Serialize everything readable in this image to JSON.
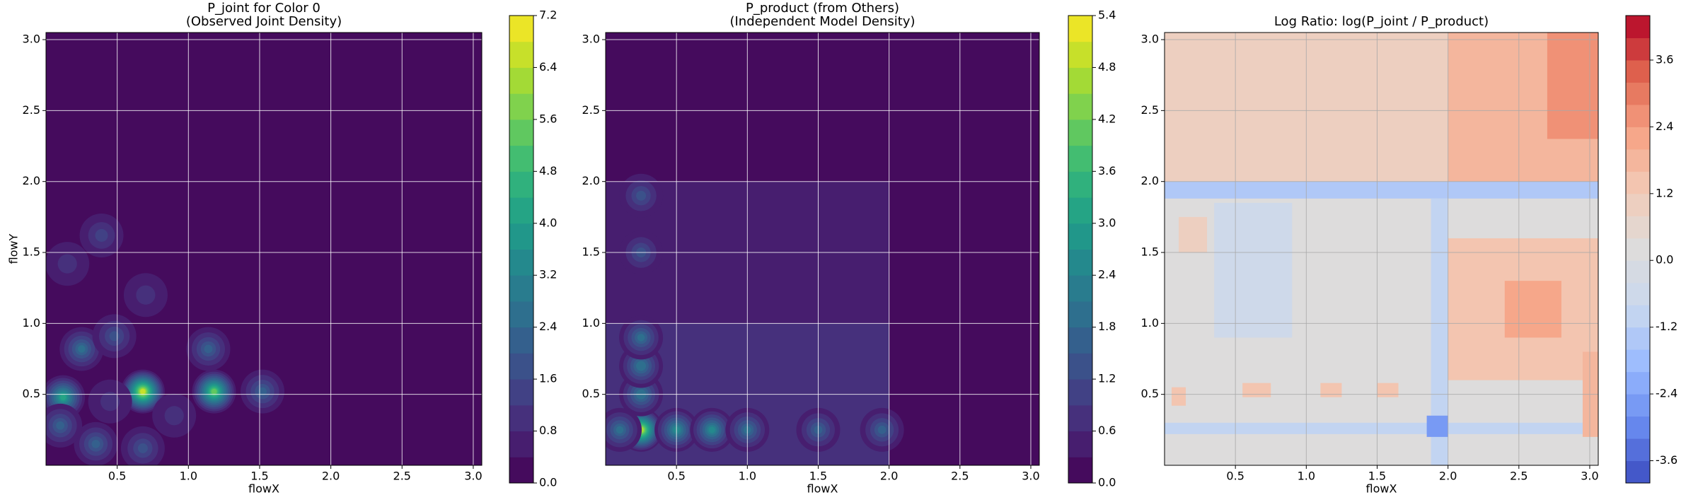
{
  "chart_data": [
    {
      "type": "contour",
      "title": "P_joint for Color 0",
      "subtitle": "(Observed Joint Density)",
      "xlabel": "flowX",
      "ylabel": "flowY",
      "xlim": [
        0.0,
        3.06
      ],
      "ylim": [
        0.0,
        3.05
      ],
      "xticks": [
        0.5,
        {
          "value": 1,
          "label": "1.0"
        },
        1.5,
        {
          "value": 2,
          "label": "2.0"
        },
        2.5,
        {
          "value": 3,
          "label": "3.0"
        }
      ],
      "yticks": [
        0.5,
        {
          "value": 1,
          "label": "1.0"
        },
        1.5,
        {
          "value": 2,
          "label": "2.0"
        },
        2.5,
        {
          "value": 3,
          "label": "3.0"
        }
      ],
      "grid": true,
      "grid_color": "#ffffff",
      "colorbar": {
        "cmap": "viridis",
        "levels": [
          0,
          0.4,
          0.8,
          1.2,
          1.6,
          2.0,
          2.4,
          2.8,
          3.2,
          3.6,
          4.0,
          4.4,
          4.8,
          5.2,
          5.6,
          6.0,
          6.4,
          6.8,
          7.2
        ],
        "ticks": [
          {
            "value": 0,
            "label": "0.0"
          },
          0.8,
          1.6,
          2.4,
          3.2,
          {
            "value": 4,
            "label": "4.0"
          },
          4.8,
          5.6,
          6.4,
          7.2
        ]
      },
      "regions": [
        {
          "x": [
            0.0,
            3.06
          ],
          "y": [
            0.0,
            3.05
          ],
          "value": 0.1
        }
      ],
      "peaks": [
        {
          "x": 0.68,
          "y": 0.52,
          "value": 6.4
        },
        {
          "x": 1.18,
          "y": 0.52,
          "value": 5.2
        },
        {
          "x": 0.12,
          "y": 0.48,
          "value": 4.0
        },
        {
          "x": 0.25,
          "y": 0.82,
          "value": 2.4
        },
        {
          "x": 0.48,
          "y": 0.91,
          "value": 1.6
        },
        {
          "x": 1.14,
          "y": 0.82,
          "value": 2.0
        },
        {
          "x": 1.52,
          "y": 0.52,
          "value": 2.0
        },
        {
          "x": 0.35,
          "y": 0.15,
          "value": 2.0
        },
        {
          "x": 0.1,
          "y": 0.28,
          "value": 2.0
        },
        {
          "x": 0.68,
          "y": 0.12,
          "value": 1.6
        },
        {
          "x": 0.39,
          "y": 1.62,
          "value": 1.2
        },
        {
          "x": 0.15,
          "y": 1.42,
          "value": 0.8
        },
        {
          "x": 0.45,
          "y": 0.45,
          "value": 0.8
        },
        {
          "x": 0.9,
          "y": 0.35,
          "value": 0.8
        },
        {
          "x": 0.7,
          "y": 1.2,
          "value": 0.8
        }
      ]
    },
    {
      "type": "contour",
      "title": "P_product (from Others)",
      "subtitle": "(Independent Model Density)",
      "xlabel": "flowX",
      "xlim": [
        0.0,
        3.06
      ],
      "ylim": [
        0.0,
        3.05
      ],
      "xticks": [
        0.5,
        {
          "value": 1,
          "label": "1.0"
        },
        1.5,
        {
          "value": 2,
          "label": "2.0"
        },
        2.5,
        {
          "value": 3,
          "label": "3.0"
        }
      ],
      "yticks": [
        0.5,
        {
          "value": 1,
          "label": "1.0"
        },
        1.5,
        {
          "value": 2,
          "label": "2.0"
        },
        2.5,
        {
          "value": 3,
          "label": "3.0"
        }
      ],
      "grid": true,
      "grid_color": "#ffffff",
      "colorbar": {
        "cmap": "viridis",
        "levels": [
          0,
          0.3,
          0.6,
          0.9,
          1.2,
          1.5,
          1.8,
          2.1,
          2.4,
          2.7,
          3.0,
          3.3,
          3.6,
          3.9,
          4.2,
          4.5,
          4.8,
          5.1,
          5.4
        ],
        "ticks": [
          {
            "value": 0,
            "label": "0.0"
          },
          0.6,
          1.2,
          1.8,
          2.4,
          {
            "value": 3,
            "label": "3.0"
          },
          3.6,
          4.2,
          4.8,
          5.4
        ]
      },
      "regions": [
        {
          "x": [
            0.0,
            3.06
          ],
          "y": [
            0.0,
            3.05
          ],
          "value": 0.1
        },
        {
          "x": [
            0.0,
            2.0
          ],
          "y": [
            0.0,
            2.0
          ],
          "value": 0.35
        },
        {
          "x": [
            0.0,
            2.0
          ],
          "y": [
            0.0,
            1.0
          ],
          "value": 0.65
        }
      ],
      "peaks": [
        {
          "x": 0.25,
          "y": 0.25,
          "value": 4.6
        },
        {
          "x": 0.25,
          "y": 0.5,
          "value": 2.0
        },
        {
          "x": 0.25,
          "y": 0.7,
          "value": 2.0
        },
        {
          "x": 0.25,
          "y": 0.9,
          "value": 1.8
        },
        {
          "x": 0.5,
          "y": 0.25,
          "value": 2.4
        },
        {
          "x": 0.75,
          "y": 0.25,
          "value": 2.4
        },
        {
          "x": 1.0,
          "y": 0.25,
          "value": 1.8
        },
        {
          "x": 1.5,
          "y": 0.25,
          "value": 1.5
        },
        {
          "x": 1.95,
          "y": 0.25,
          "value": 1.5
        },
        {
          "x": 0.1,
          "y": 0.25,
          "value": 1.8
        },
        {
          "x": 0.25,
          "y": 1.5,
          "value": 1.2
        },
        {
          "x": 0.25,
          "y": 1.9,
          "value": 1.2
        }
      ]
    },
    {
      "type": "contour",
      "title": "Log Ratio: log(P_joint / P_product)",
      "xlabel": "flowX",
      "xlim": [
        0.0,
        3.06
      ],
      "ylim": [
        0.0,
        3.05
      ],
      "xticks": [
        0.5,
        {
          "value": 1,
          "label": "1.0"
        },
        1.5,
        {
          "value": 2,
          "label": "2.0"
        },
        2.5,
        {
          "value": 3,
          "label": "3.0"
        }
      ],
      "yticks": [
        0.5,
        {
          "value": 1,
          "label": "1.0"
        },
        1.5,
        {
          "value": 2,
          "label": "2.0"
        },
        2.5,
        {
          "value": 3,
          "label": "3.0"
        }
      ],
      "grid": true,
      "grid_color": "#a8a8a8",
      "colorbar": {
        "cmap": "coolwarm",
        "levels": [
          -4.0,
          -3.6,
          -3.2,
          -2.8,
          -2.4,
          -2.0,
          -1.6,
          -1.2,
          -0.8,
          -0.4,
          0,
          0.4,
          0.8,
          1.2,
          1.6,
          2.0,
          2.4,
          2.8,
          3.2,
          3.6,
          4.0,
          4.4
        ],
        "ticks": [
          -3.6,
          -2.4,
          -1.2,
          {
            "value": 0,
            "label": "0.0"
          },
          1.2,
          2.4,
          3.6
        ]
      },
      "regions": [
        {
          "x": [
            0.0,
            3.06
          ],
          "y": [
            0.0,
            3.05
          ],
          "value": 0.2
        },
        {
          "x": [
            0.0,
            2.0
          ],
          "y": [
            2.0,
            3.05
          ],
          "value": 0.9
        },
        {
          "x": [
            2.0,
            3.06
          ],
          "y": [
            2.0,
            3.05
          ],
          "value": 1.6
        },
        {
          "x": [
            2.7,
            3.06
          ],
          "y": [
            2.3,
            3.05
          ],
          "value": 2.6
        },
        {
          "x": [
            0.0,
            3.06
          ],
          "y": [
            1.88,
            2.0
          ],
          "value": -1.4
        },
        {
          "x": [
            1.88,
            2.0
          ],
          "y": [
            0.0,
            1.88
          ],
          "value": -1.0
        },
        {
          "x": [
            2.0,
            3.06
          ],
          "y": [
            0.6,
            1.6
          ],
          "value": 1.2
        },
        {
          "x": [
            2.4,
            2.8
          ],
          "y": [
            0.9,
            1.3
          ],
          "value": 2.0
        },
        {
          "x": [
            0.35,
            0.9
          ],
          "y": [
            0.9,
            1.85
          ],
          "value": -0.6
        },
        {
          "x": [
            0.0,
            3.06
          ],
          "y": [
            0.22,
            0.3
          ],
          "value": -1.0
        },
        {
          "x": [
            1.85,
            2.0
          ],
          "y": [
            0.2,
            0.35
          ],
          "value": -2.6
        },
        {
          "x": [
            0.05,
            0.15
          ],
          "y": [
            0.42,
            0.55
          ],
          "value": 1.4
        },
        {
          "x": [
            0.55,
            0.75
          ],
          "y": [
            0.48,
            0.58
          ],
          "value": 1.4
        },
        {
          "x": [
            1.1,
            1.25
          ],
          "y": [
            0.48,
            0.58
          ],
          "value": 1.4
        },
        {
          "x": [
            1.5,
            1.65
          ],
          "y": [
            0.48,
            0.58
          ],
          "value": 1.4
        },
        {
          "x": [
            0.1,
            0.3
          ],
          "y": [
            1.5,
            1.75
          ],
          "value": 1.0
        },
        {
          "x": [
            2.95,
            3.06
          ],
          "y": [
            0.2,
            0.8
          ],
          "value": 1.6
        }
      ],
      "peaks": []
    }
  ]
}
